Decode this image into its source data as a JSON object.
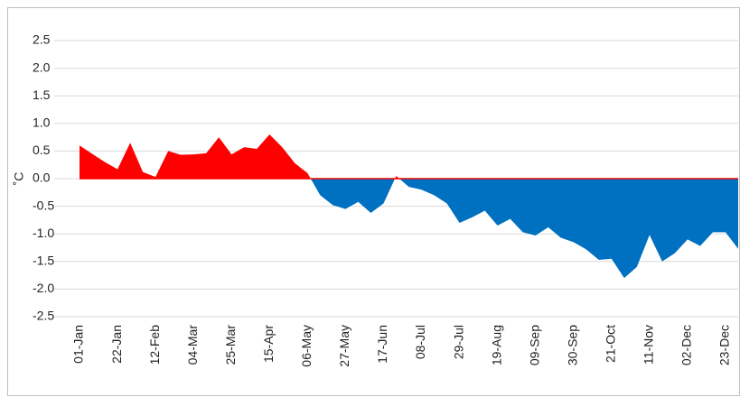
{
  "chart_data": {
    "type": "area",
    "y_label": "˚C",
    "categories": [
      "01-Jan",
      null,
      null,
      "22-Jan",
      null,
      null,
      "12-Feb",
      null,
      null,
      "04-Mar",
      null,
      null,
      "25-Mar",
      null,
      null,
      "15-Apr",
      null,
      null,
      "06-May",
      null,
      null,
      "27-May",
      null,
      null,
      "17-Jun",
      null,
      null,
      "08-Jul",
      null,
      null,
      "29-Jul",
      null,
      null,
      "19-Aug",
      null,
      null,
      "09-Sep",
      null,
      null,
      "30-Sep",
      null,
      null,
      "21-Oct",
      null,
      null,
      "11-Nov",
      null,
      null,
      "02-Dec",
      null,
      null,
      "23-Dec",
      null
    ],
    "values": [
      0.6,
      0.45,
      0.3,
      0.17,
      0.65,
      0.12,
      0.03,
      0.5,
      0.43,
      0.44,
      0.46,
      0.75,
      0.44,
      0.57,
      0.54,
      0.8,
      0.57,
      0.28,
      0.1,
      -0.3,
      -0.48,
      -0.55,
      -0.42,
      -0.62,
      -0.45,
      0.05,
      -0.15,
      -0.2,
      -0.3,
      -0.45,
      -0.8,
      -0.7,
      -0.58,
      -0.85,
      -0.73,
      -0.97,
      -1.03,
      -0.88,
      -1.07,
      -1.15,
      -1.28,
      -1.47,
      -1.45,
      -1.8,
      -1.6,
      -1.02,
      -1.5,
      -1.35,
      -1.1,
      -1.22,
      -0.97,
      -0.97,
      -1.27
    ],
    "positive_color": "#ff0000",
    "negative_color": "#0070c0",
    "ylim": [
      -2.5,
      2.5
    ],
    "yticks": [
      2.5,
      {
        "value": 2,
        "label": "2.0"
      },
      1.5,
      {
        "value": 1,
        "label": "1.0"
      },
      0.5,
      {
        "value": 0,
        "label": "0.0"
      },
      -0.5,
      {
        "value": -1,
        "label": "-1.0"
      },
      -1.5,
      {
        "value": -2,
        "label": "-2.0"
      },
      -2.5
    ],
    "grid": true
  }
}
